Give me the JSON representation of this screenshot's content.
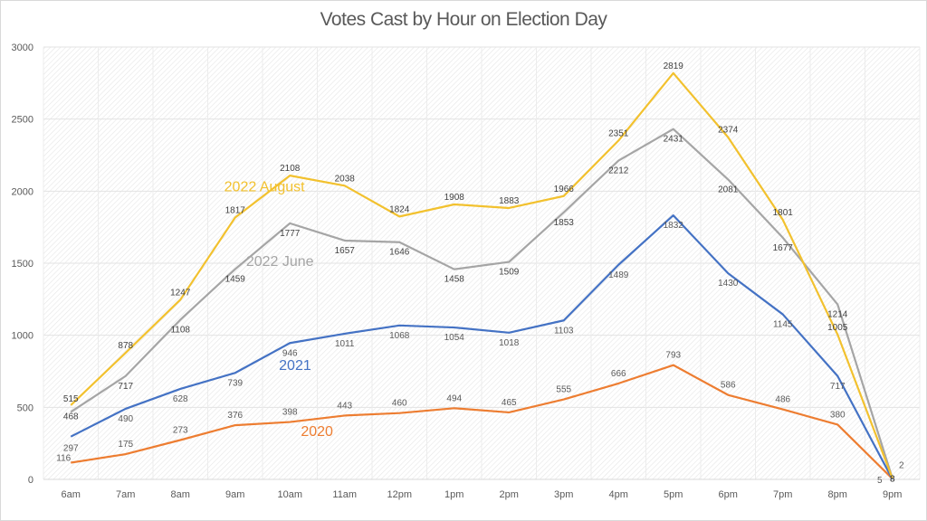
{
  "chart_data": {
    "type": "line",
    "title": "Votes Cast by Hour on Election Day",
    "xlabel": "",
    "ylabel": "",
    "categories": [
      "6am",
      "7am",
      "8am",
      "9am",
      "10am",
      "11am",
      "12pm",
      "1pm",
      "2pm",
      "3pm",
      "4pm",
      "5pm",
      "6pm",
      "7pm",
      "8pm",
      "9pm"
    ],
    "ylim": [
      0,
      3000
    ],
    "yticks": [
      0,
      500,
      1000,
      1500,
      2000,
      2500,
      3000
    ],
    "grid": true,
    "legend": "inline series labels",
    "series": [
      {
        "name": "2022 August",
        "color": "#F2C12E",
        "values": [
          515,
          878,
          1247,
          1817,
          2108,
          2038,
          1824,
          1908,
          1883,
          1966,
          2351,
          2819,
          2374,
          1801,
          1005,
          8
        ]
      },
      {
        "name": "2022 June",
        "color": "#A5A5A5",
        "values": [
          468,
          717,
          1108,
          1459,
          1777,
          1657,
          1646,
          1458,
          1509,
          1853,
          2212,
          2431,
          2081,
          1677,
          1214,
          8
        ]
      },
      {
        "name": "2021",
        "color": "#4472C4",
        "values": [
          297,
          490,
          628,
          739,
          946,
          1011,
          1068,
          1054,
          1018,
          1103,
          1489,
          1832,
          1430,
          1145,
          717,
          2
        ]
      },
      {
        "name": "2020",
        "color": "#ED7D31",
        "values": [
          116,
          175,
          273,
          376,
          398,
          443,
          460,
          494,
          465,
          555,
          666,
          793,
          586,
          486,
          380,
          5
        ]
      }
    ]
  }
}
